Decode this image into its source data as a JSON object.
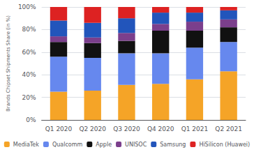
{
  "chart_data": {
    "type": "bar",
    "stacked": true,
    "ylabel": "Brands Chipset Shipments Share (in %)",
    "categories": [
      "Q1 2020",
      "Q2 2020",
      "Q3 2020",
      "Q4 2020",
      "Q1 2021",
      "Q2 2021"
    ],
    "series": [
      {
        "name": "MediaTek",
        "color": "#F5A427",
        "values": [
          25,
          26,
          31,
          32,
          36,
          43
        ]
      },
      {
        "name": "Qualcomm",
        "color": "#6688EE",
        "values": [
          31,
          29,
          28,
          27,
          28,
          26
        ]
      },
      {
        "name": "Apple",
        "color": "#111111",
        "values": [
          13,
          13,
          11,
          20,
          15,
          13
        ]
      },
      {
        "name": "UNISOC",
        "color": "#7B3F8C",
        "values": [
          5,
          5,
          7,
          6,
          8,
          7
        ]
      },
      {
        "name": "Samsung",
        "color": "#2255BB",
        "values": [
          14,
          13,
          13,
          10,
          8,
          8
        ]
      },
      {
        "name": "HiSilicon (Huawei)",
        "color": "#DD2222",
        "values": [
          12,
          14,
          10,
          5,
          5,
          3
        ]
      }
    ],
    "ylim": [
      0,
      100
    ],
    "yticks": [
      {
        "value": 0,
        "label": "0%"
      },
      {
        "value": 20,
        "label": "20%"
      },
      {
        "value": 40,
        "label": "40%"
      },
      {
        "value": 60,
        "label": "60%"
      },
      {
        "value": 80,
        "label": "80%"
      },
      {
        "value": 100,
        "label": "100%"
      }
    ],
    "grid": true,
    "legend": "bottom"
  }
}
